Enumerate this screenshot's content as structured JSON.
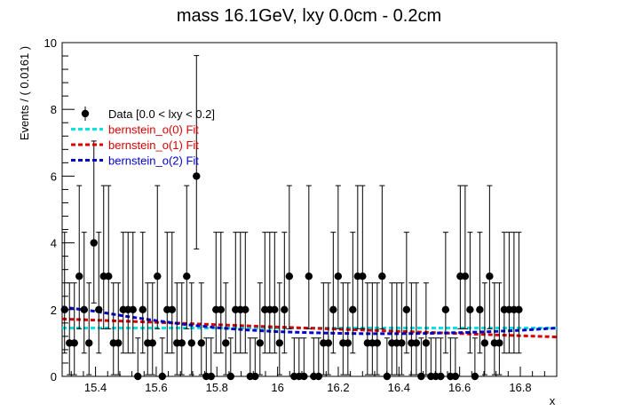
{
  "chart_data": {
    "type": "scatter",
    "title": "mass 16.1GeV, lxy 0.0cm - 0.2cm",
    "xlabel": "x",
    "ylabel": "Events / ( 0.0161 )",
    "xlim": [
      15.29,
      16.92
    ],
    "ylim": [
      0,
      10
    ],
    "x_ticks": [
      "15.4",
      "15.6",
      "15.8",
      "16",
      "16.2",
      "16.4",
      "16.6",
      "16.8"
    ],
    "x_tick_values": [
      15.4,
      15.6,
      15.8,
      16.0,
      16.2,
      16.4,
      16.6,
      16.8
    ],
    "y_ticks": [
      "0",
      "2",
      "4",
      "6",
      "8",
      "10"
    ],
    "y_tick_values": [
      0,
      2,
      4,
      6,
      8,
      10
    ],
    "legend_position": "top-left",
    "data_series": {
      "name": "Data [0.0 < lxy < 0.2]",
      "color": "#000000",
      "bin_width": 0.0161,
      "first_bin_center": 15.298,
      "values": [
        2,
        1,
        1,
        3,
        2,
        1,
        4,
        2,
        3,
        3,
        1,
        1,
        2,
        2,
        2,
        0,
        2,
        1,
        1,
        3,
        0,
        2,
        2,
        1,
        1,
        3,
        1,
        6,
        1,
        0,
        0,
        2,
        2,
        1,
        0,
        2,
        2,
        2,
        0,
        0,
        1,
        2,
        2,
        2,
        1,
        2,
        3,
        0,
        0,
        0,
        3,
        0,
        0,
        1,
        1,
        2,
        3,
        1,
        1,
        2,
        3,
        3,
        1,
        1,
        1,
        3,
        0,
        1,
        1,
        1,
        2,
        1,
        1,
        0,
        1,
        0,
        0,
        0,
        2,
        0,
        0,
        3,
        3,
        2,
        0,
        2,
        1,
        3,
        1,
        1,
        2,
        2,
        2,
        2
      ]
    },
    "series": [
      {
        "name": "bernstein_o(0) Fit",
        "color": "#00e5e5",
        "x": [
          15.29,
          16.92
        ],
        "y": [
          1.45,
          1.45
        ]
      },
      {
        "name": "bernstein_o(1) Fit",
        "color": "#dd0000",
        "x": [
          15.29,
          15.6,
          16.0,
          16.4,
          16.7,
          16.92
        ],
        "y": [
          1.72,
          1.62,
          1.48,
          1.35,
          1.25,
          1.18
        ]
      },
      {
        "name": "bernstein_o(2) Fit",
        "color": "#0000cc",
        "x": [
          15.29,
          15.4,
          15.5,
          15.6,
          15.7,
          15.8,
          15.9,
          16.0,
          16.1,
          16.2,
          16.3,
          16.4,
          16.5,
          16.6,
          16.7,
          16.8,
          16.92
        ],
        "y": [
          2.08,
          1.95,
          1.8,
          1.67,
          1.55,
          1.46,
          1.39,
          1.34,
          1.31,
          1.29,
          1.28,
          1.28,
          1.29,
          1.31,
          1.34,
          1.38,
          1.45
        ]
      }
    ]
  }
}
